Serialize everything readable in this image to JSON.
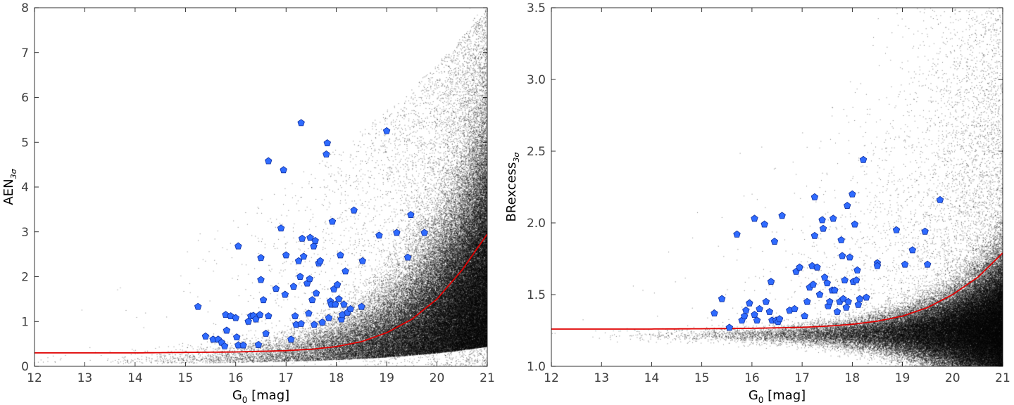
{
  "chart_data": [
    {
      "type": "scatter",
      "xlabel": "G",
      "xlabel_sub": "0",
      "xlabel_suffix": " [mag]",
      "ylabel": "AEN",
      "ylabel_sub": "3σ",
      "xlim": [
        12,
        21
      ],
      "ylim": [
        0,
        8
      ],
      "xticks": [
        12,
        13,
        14,
        15,
        16,
        17,
        18,
        19,
        20,
        21
      ],
      "yticks": [
        0,
        1,
        2,
        3,
        4,
        5,
        6,
        7,
        8
      ],
      "grid": false,
      "background_density": "black point cloud (field stars), densest at faint G and low y",
      "threshold_curve": {
        "color": "#e00000",
        "x": [
          12,
          14,
          15,
          16,
          17,
          17.5,
          18,
          18.5,
          19,
          19.5,
          20,
          20.5,
          21
        ],
        "y": [
          0.3,
          0.3,
          0.31,
          0.32,
          0.35,
          0.38,
          0.44,
          0.55,
          0.75,
          1.05,
          1.5,
          2.15,
          2.95
        ]
      },
      "series": [
        {
          "marker": "pentagon",
          "color": "#2f6bff",
          "edge": "#1030a0",
          "points": [
            [
              15.25,
              1.33
            ],
            [
              15.4,
              0.67
            ],
            [
              15.55,
              0.6
            ],
            [
              15.65,
              0.6
            ],
            [
              15.72,
              0.53
            ],
            [
              15.78,
              0.45
            ],
            [
              15.8,
              1.15
            ],
            [
              15.82,
              0.8
            ],
            [
              15.9,
              1.12
            ],
            [
              16.0,
              1.08
            ],
            [
              16.02,
              0.65
            ],
            [
              16.05,
              2.68
            ],
            [
              16.05,
              0.47
            ],
            [
              16.15,
              0.47
            ],
            [
              16.25,
              1.0
            ],
            [
              16.3,
              1.12
            ],
            [
              16.35,
              1.13
            ],
            [
              16.4,
              1.05
            ],
            [
              16.45,
              0.48
            ],
            [
              16.48,
              1.15
            ],
            [
              16.5,
              2.42
            ],
            [
              16.5,
              1.93
            ],
            [
              16.55,
              1.48
            ],
            [
              16.6,
              0.73
            ],
            [
              16.65,
              1.12
            ],
            [
              16.65,
              4.58
            ],
            [
              16.8,
              1.73
            ],
            [
              16.9,
              3.08
            ],
            [
              16.95,
              4.38
            ],
            [
              16.98,
              1.6
            ],
            [
              17.0,
              2.48
            ],
            [
              17.1,
              0.6
            ],
            [
              17.15,
              1.78
            ],
            [
              17.18,
              1.12
            ],
            [
              17.2,
              0.93
            ],
            [
              17.25,
              2.35
            ],
            [
              17.28,
              2.0
            ],
            [
              17.3,
              0.95
            ],
            [
              17.3,
              5.43
            ],
            [
              17.32,
              2.85
            ],
            [
              17.35,
              2.45
            ],
            [
              17.42,
              1.85
            ],
            [
              17.45,
              1.18
            ],
            [
              17.47,
              1.95
            ],
            [
              17.48,
              2.87
            ],
            [
              17.52,
              1.48
            ],
            [
              17.55,
              2.68
            ],
            [
              17.56,
              0.93
            ],
            [
              17.58,
              2.8
            ],
            [
              17.6,
              1.63
            ],
            [
              17.65,
              2.3
            ],
            [
              17.68,
              2.35
            ],
            [
              17.72,
              0.98
            ],
            [
              17.8,
              4.73
            ],
            [
              17.82,
              4.98
            ],
            [
              17.85,
              1.08
            ],
            [
              17.88,
              1.45
            ],
            [
              17.9,
              1.38
            ],
            [
              17.92,
              3.23
            ],
            [
              17.95,
              1.72
            ],
            [
              17.98,
              1.38
            ],
            [
              18.02,
              1.82
            ],
            [
              18.05,
              1.5
            ],
            [
              18.08,
              2.48
            ],
            [
              18.1,
              1.05
            ],
            [
              18.12,
              1.15
            ],
            [
              18.15,
              1.38
            ],
            [
              18.18,
              2.12
            ],
            [
              18.22,
              1.2
            ],
            [
              18.28,
              1.28
            ],
            [
              18.35,
              3.48
            ],
            [
              18.52,
              2.35
            ],
            [
              18.5,
              1.33
            ],
            [
              18.85,
              2.92
            ],
            [
              19.0,
              5.25
            ],
            [
              19.2,
              2.98
            ],
            [
              19.42,
              2.43
            ],
            [
              19.48,
              3.38
            ],
            [
              19.75,
              2.98
            ]
          ]
        }
      ]
    },
    {
      "type": "scatter",
      "xlabel": "G",
      "xlabel_sub": "0",
      "xlabel_suffix": " [mag]",
      "ylabel": "BRexcess",
      "ylabel_sub": "3σ",
      "xlim": [
        12,
        21
      ],
      "ylim": [
        1.0,
        3.5
      ],
      "xticks": [
        12,
        13,
        14,
        15,
        16,
        17,
        18,
        19,
        20,
        21
      ],
      "yticks": [
        1.0,
        1.5,
        2.0,
        2.5,
        3.0,
        3.5
      ],
      "ytick_labels": [
        "1.0",
        "1.5",
        "2.0",
        "2.5",
        "3.0",
        "3.5"
      ],
      "grid": false,
      "background_density": "black point cloud (field stars), narrow band near y≈1.2 widening at faint G",
      "threshold_curve": {
        "color": "#e00000",
        "x": [
          12,
          14,
          15,
          16,
          17,
          17.5,
          18,
          18.5,
          19,
          19.5,
          20,
          20.5,
          21
        ],
        "y": [
          1.26,
          1.26,
          1.262,
          1.265,
          1.272,
          1.28,
          1.293,
          1.315,
          1.35,
          1.41,
          1.5,
          1.62,
          1.79
        ]
      },
      "series": [
        {
          "marker": "pentagon",
          "color": "#2f6bff",
          "edge": "#1030a0",
          "points": [
            [
              15.25,
              1.37
            ],
            [
              15.4,
              1.47
            ],
            [
              15.55,
              1.27
            ],
            [
              15.7,
              1.92
            ],
            [
              15.8,
              1.32
            ],
            [
              15.85,
              1.35
            ],
            [
              15.88,
              1.39
            ],
            [
              15.95,
              1.44
            ],
            [
              16.05,
              1.36
            ],
            [
              16.05,
              2.03
            ],
            [
              16.1,
              1.32
            ],
            [
              16.15,
              1.4
            ],
            [
              16.25,
              1.99
            ],
            [
              16.28,
              1.45
            ],
            [
              16.35,
              1.38
            ],
            [
              16.38,
              1.59
            ],
            [
              16.4,
              1.32
            ],
            [
              16.45,
              1.87
            ],
            [
              16.48,
              1.32
            ],
            [
              16.52,
              1.31
            ],
            [
              16.55,
              1.33
            ],
            [
              16.6,
              2.05
            ],
            [
              16.75,
              1.39
            ],
            [
              16.85,
              1.4
            ],
            [
              16.88,
              1.66
            ],
            [
              16.95,
              1.69
            ],
            [
              17.05,
              1.35
            ],
            [
              17.1,
              1.45
            ],
            [
              17.15,
              1.55
            ],
            [
              17.2,
              1.7
            ],
            [
              17.22,
              1.57
            ],
            [
              17.25,
              2.18
            ],
            [
              17.25,
              1.91
            ],
            [
              17.3,
              1.69
            ],
            [
              17.35,
              1.5
            ],
            [
              17.4,
              2.02
            ],
            [
              17.42,
              1.96
            ],
            [
              17.45,
              1.62
            ],
            [
              17.5,
              1.58
            ],
            [
              17.52,
              1.42
            ],
            [
              17.55,
              1.45
            ],
            [
              17.6,
              1.53
            ],
            [
              17.62,
              2.03
            ],
            [
              17.65,
              1.53
            ],
            [
              17.7,
              1.38
            ],
            [
              17.75,
              1.45
            ],
            [
              17.78,
              1.88
            ],
            [
              17.8,
              1.77
            ],
            [
              17.82,
              1.47
            ],
            [
              17.85,
              1.6
            ],
            [
              17.88,
              1.41
            ],
            [
              17.9,
              2.12
            ],
            [
              17.92,
              1.45
            ],
            [
              17.95,
              1.76
            ],
            [
              18.0,
              2.2
            ],
            [
              18.02,
              1.59
            ],
            [
              18.05,
              1.99
            ],
            [
              18.08,
              1.6
            ],
            [
              18.1,
              1.67
            ],
            [
              18.12,
              1.43
            ],
            [
              18.15,
              1.47
            ],
            [
              18.22,
              2.44
            ],
            [
              18.28,
              1.48
            ],
            [
              18.5,
              1.72
            ],
            [
              18.5,
              1.7
            ],
            [
              18.88,
              1.95
            ],
            [
              19.05,
              1.71
            ],
            [
              19.2,
              1.81
            ],
            [
              19.45,
              1.94
            ],
            [
              19.5,
              1.71
            ],
            [
              19.75,
              2.16
            ]
          ]
        }
      ]
    }
  ]
}
